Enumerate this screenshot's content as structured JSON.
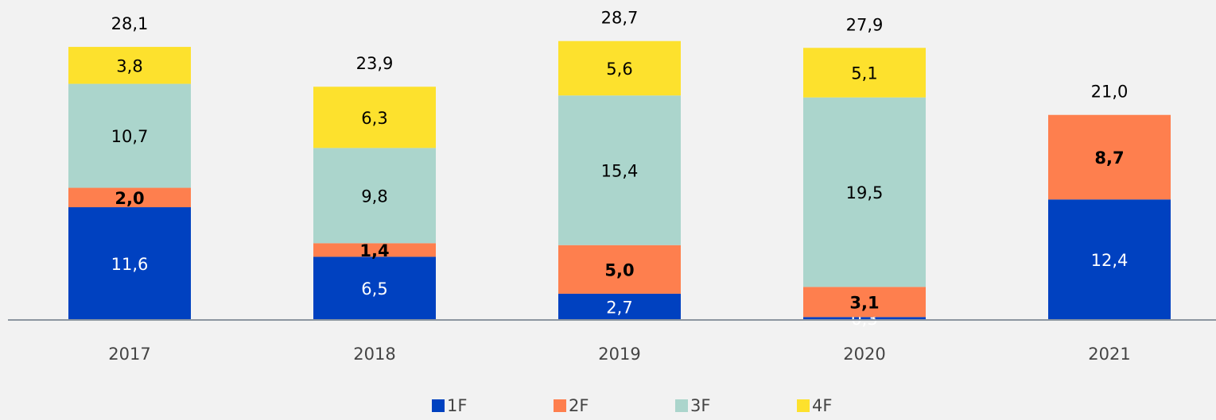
{
  "chart_data": {
    "type": "stacked_bar",
    "categories": [
      "2017",
      "2018",
      "2019",
      "2020",
      "2021"
    ],
    "series": [
      {
        "name": "1F",
        "color": "#0041c0",
        "label_color": "#ffffff",
        "label_weight": "normal",
        "values": [
          11.6,
          6.5,
          2.7,
          0.3,
          12.4
        ],
        "value_labels": [
          "11,6",
          "6,5",
          "2,7",
          "0,3",
          "12,4"
        ]
      },
      {
        "name": "2F",
        "color": "#fe7f4e",
        "label_color": "#000000",
        "label_weight": "bold",
        "values": [
          2.0,
          1.4,
          5.0,
          3.1,
          8.7
        ],
        "value_labels": [
          "2,0",
          "1,4",
          "5,0",
          "3,1",
          "8,7"
        ]
      },
      {
        "name": "3F",
        "color": "#abd5cc",
        "label_color": "#000000",
        "label_weight": "normal",
        "values": [
          10.7,
          9.8,
          15.4,
          19.5,
          null
        ],
        "value_labels": [
          "10,7",
          "9,8",
          "15,4",
          "19,5",
          null
        ]
      },
      {
        "name": "4F",
        "color": "#fde12d",
        "label_color": "#000000",
        "label_weight": "normal",
        "values": [
          3.8,
          6.3,
          5.6,
          5.1,
          null
        ],
        "value_labels": [
          "3,8",
          "6,3",
          "5,6",
          "5,1",
          null
        ]
      }
    ],
    "totals": [
      28.1,
      23.9,
      28.7,
      27.9,
      21.0
    ],
    "total_labels": [
      "28,1",
      "23,9",
      "28,7",
      "27,9",
      "21,0"
    ]
  }
}
